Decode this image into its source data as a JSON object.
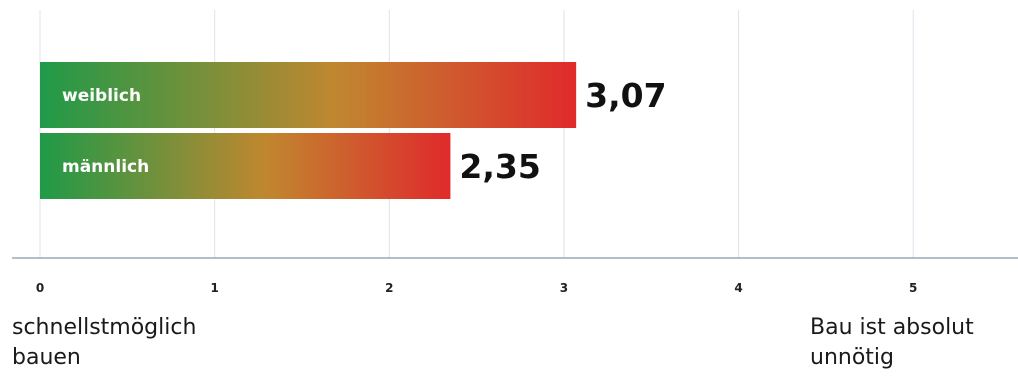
{
  "chart_data": {
    "type": "bar",
    "orientation": "horizontal",
    "categories": [
      "weiblich",
      "männlich"
    ],
    "values": [
      3.07,
      2.35
    ],
    "value_labels": [
      "3,07",
      "2,35"
    ],
    "xlim": [
      0,
      5.6
    ],
    "x_ticks": [
      0,
      1,
      2,
      3,
      4,
      5
    ],
    "x_tick_labels": [
      "0",
      "1",
      "2",
      "3",
      "4",
      "5"
    ],
    "scale_low_label": "schnellstmöglich\nbauen",
    "scale_high_label": "Bau ist absolut\nunnötig",
    "grid": true,
    "colors": {
      "bar_gradient_start": "#1f9a48",
      "bar_gradient_mid": "#c0872f",
      "bar_gradient_end": "#e02a2c",
      "grid": "#dde3ec",
      "axis": "#9aa8b8"
    }
  }
}
